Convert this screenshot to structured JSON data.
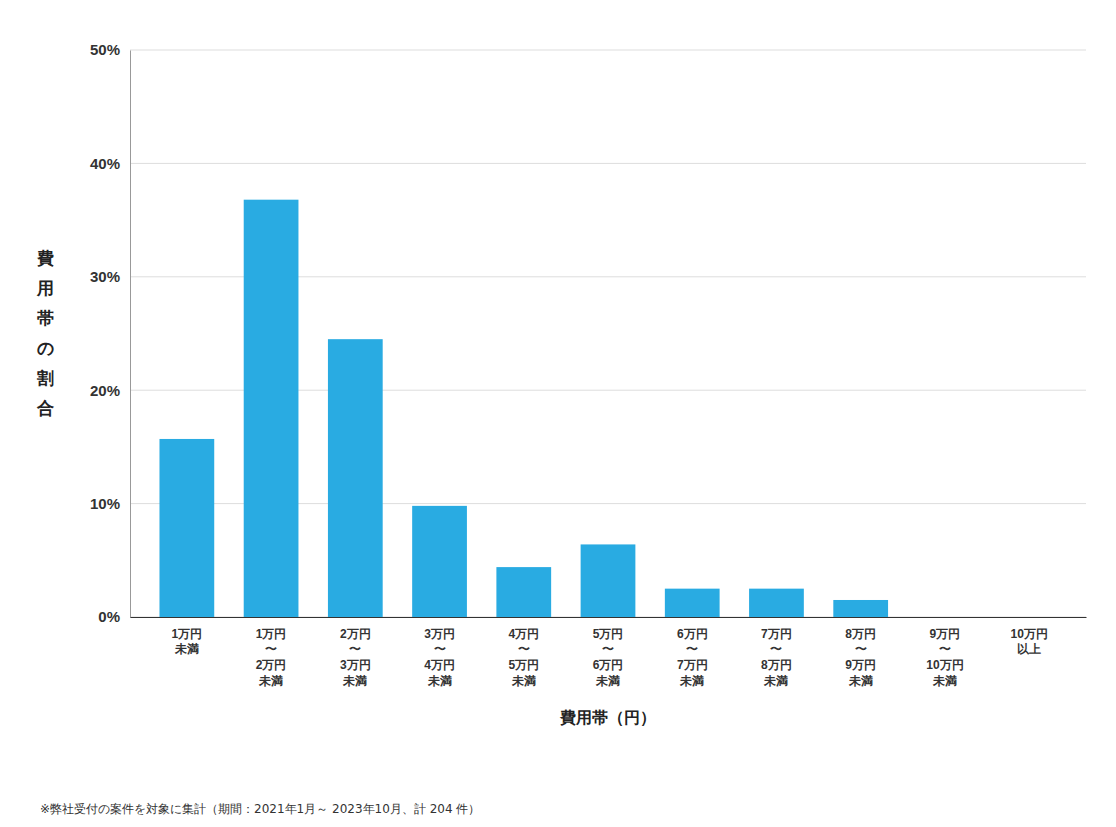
{
  "chart_data": {
    "type": "bar",
    "categories": [
      "1万円\n未満",
      "1万円\n〜\n2万円\n未満",
      "2万円\n〜\n3万円\n未満",
      "3万円\n〜\n4万円\n未満",
      "4万円\n〜\n5万円\n未満",
      "5万円\n〜\n6万円\n未満",
      "6万円\n〜\n7万円\n未満",
      "7万円\n〜\n8万円\n未満",
      "8万円\n〜\n9万円\n未満",
      "9万円\n〜\n10万円\n未満",
      "10万円\n以上"
    ],
    "values": [
      15.7,
      36.8,
      24.5,
      9.8,
      4.4,
      6.4,
      2.5,
      2.5,
      1.5,
      0.0,
      0.0
    ],
    "color": "#29ABE2",
    "xlabel": "費用帯（円）",
    "ylabel": "費用帯の割合",
    "footnote": "※弊社受付の案件を対象に集計（期間：2021年1月～ 2023年10月、計 204 件）",
    "ylim": [
      0,
      50
    ],
    "yticks": [
      {
        "value": 0,
        "label": "0%"
      },
      {
        "value": 10,
        "label": "10%"
      },
      {
        "value": 20,
        "label": "20%"
      },
      {
        "value": 30,
        "label": "30%"
      },
      {
        "value": 40,
        "label": "40%"
      },
      {
        "value": 50,
        "label": "50%"
      }
    ],
    "grid": true
  }
}
